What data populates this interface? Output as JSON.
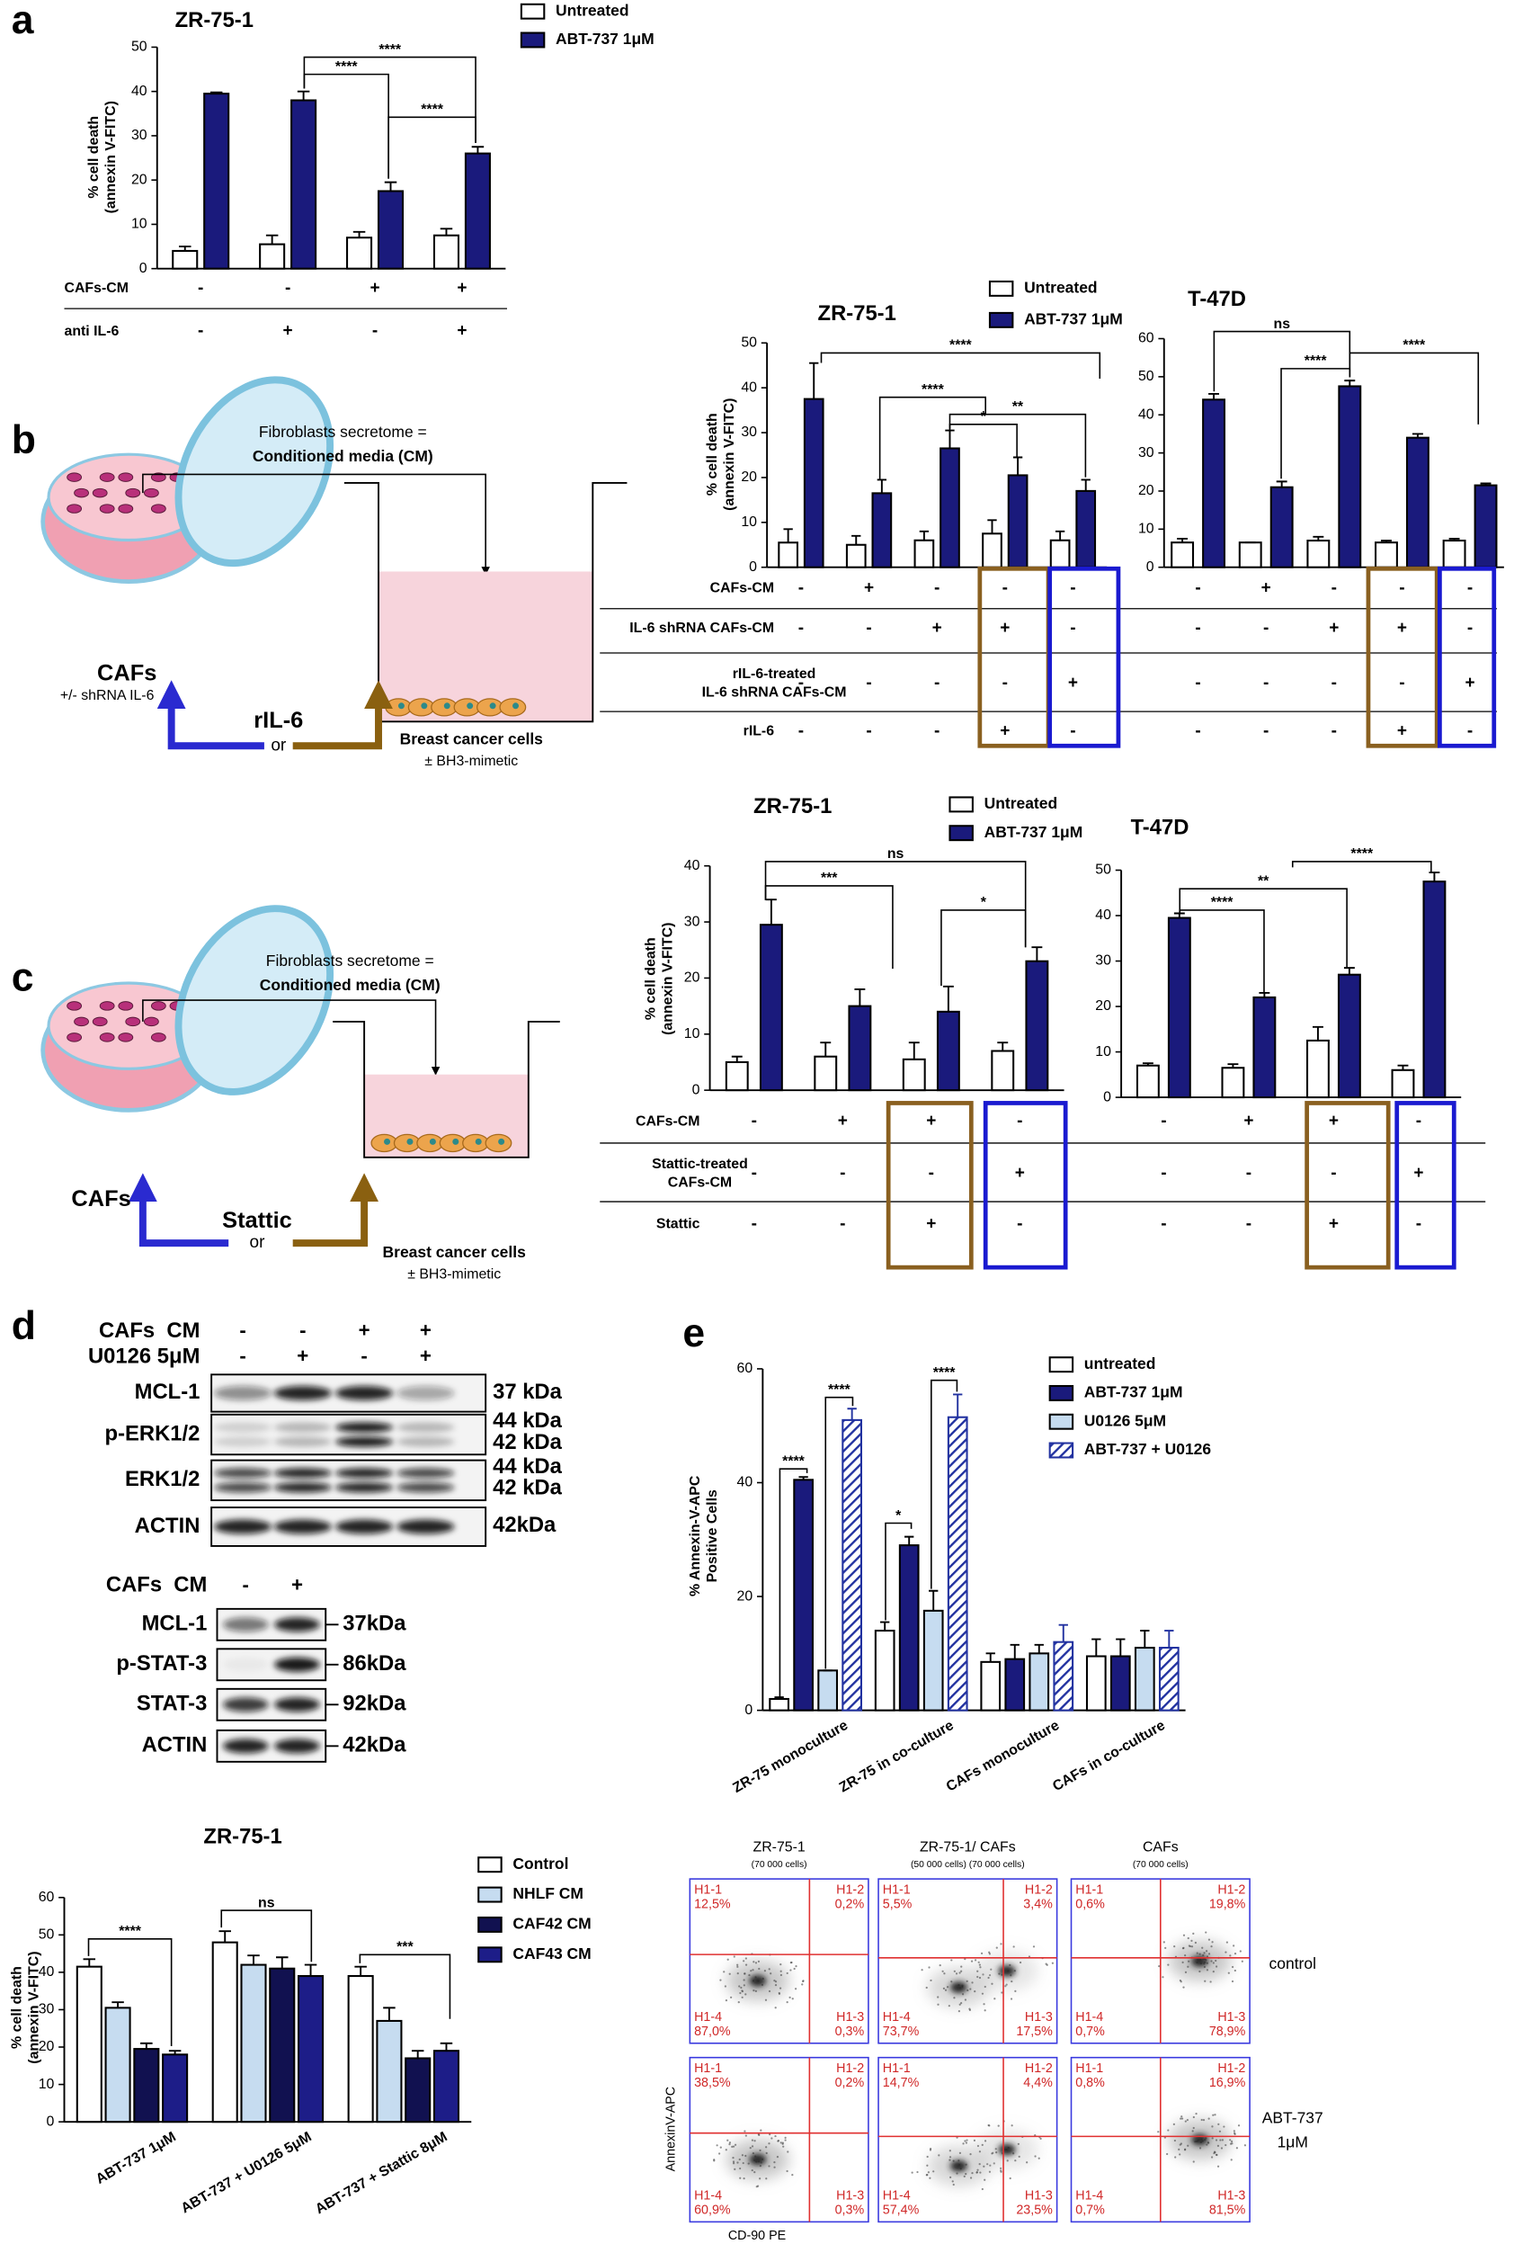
{
  "panel_labels": [
    "a",
    "b",
    "c",
    "d",
    "e"
  ],
  "chart_data": [
    {
      "type": "bar",
      "title": "ZR-75-1",
      "y_label": [
        "% cell death",
        "(annexin V-FITC)"
      ],
      "ylim": [
        0,
        50
      ],
      "yticks": [
        0,
        10,
        20,
        30,
        40,
        50
      ],
      "legend": true,
      "series": [
        {
          "name": "Untreated",
          "color": "#ffffff",
          "values": [
            4,
            5.5,
            7,
            7.5
          ],
          "errors": [
            1,
            2,
            1.3,
            1.5
          ]
        },
        {
          "name": "ABT-737 1μM",
          "color": "#1a1a7c",
          "values": [
            39.5,
            38,
            17.5,
            26
          ],
          "errors": [
            0.3,
            2,
            2,
            1.5
          ]
        }
      ],
      "conditions": [
        {
          "label": [
            "CAFs-CM"
          ],
          "values": [
            "-",
            "-",
            "+",
            "+"
          ]
        },
        {
          "label": [
            "anti IL-6"
          ],
          "values": [
            "-",
            "+",
            "-",
            "+"
          ]
        }
      ],
      "annotations": [
        "****",
        "****",
        "****"
      ]
    },
    {
      "type": "bar",
      "title": "ZR-75-1",
      "y_label": [
        "% cell death",
        "(annexin V-FITC)"
      ],
      "ylim": [
        0,
        50
      ],
      "yticks": [
        0,
        10,
        20,
        30,
        40,
        50
      ],
      "legend": true,
      "series": [
        {
          "name": "Untreated",
          "color": "#ffffff",
          "values": [
            5.5,
            5,
            6,
            7.5,
            6
          ],
          "errors": [
            3,
            2,
            2,
            3,
            2
          ]
        },
        {
          "name": "ABT-737 1μM",
          "color": "#1a1a7c",
          "values": [
            37.5,
            16.5,
            26.5,
            20.5,
            17
          ],
          "errors": [
            8,
            3,
            4,
            4,
            2.5
          ]
        }
      ],
      "conditions": [
        {
          "label": [
            "CAFs-CM"
          ],
          "values": [
            "-",
            "+",
            "-",
            "-",
            "-"
          ]
        },
        {
          "label": [
            "IL-6 shRNA CAFs-CM"
          ],
          "values": [
            "-",
            "-",
            "+",
            "+",
            "-"
          ]
        },
        {
          "label": [
            "rIL-6-treated",
            "IL-6 shRNA CAFs-CM"
          ],
          "values": [
            "-",
            "-",
            "-",
            "-",
            "+"
          ]
        },
        {
          "label": [
            "rIL-6"
          ],
          "values": [
            "-",
            "-",
            "-",
            "+",
            "-"
          ]
        }
      ],
      "annotations": [
        "****",
        "****",
        "*",
        "**"
      ]
    },
    {
      "type": "bar",
      "title": "T-47D",
      "ylim": [
        0,
        60
      ],
      "yticks": [
        0,
        10,
        20,
        30,
        40,
        50,
        60
      ],
      "series": [
        {
          "color": "#ffffff",
          "values": [
            6.5,
            6.5,
            7,
            6.5,
            7
          ],
          "errors": [
            1,
            0,
            1,
            0.5,
            0.5
          ]
        },
        {
          "color": "#1a1a7c",
          "values": [
            44,
            21,
            47.5,
            34,
            21.5
          ],
          "errors": [
            1.5,
            1.5,
            1.5,
            1,
            0.5
          ]
        }
      ],
      "conditions": [
        {
          "values": [
            "-",
            "+",
            "-",
            "-",
            "-"
          ]
        },
        {
          "values": [
            "-",
            "-",
            "+",
            "+",
            "-"
          ]
        },
        {
          "values": [
            "-",
            "-",
            "-",
            "-",
            "+"
          ]
        },
        {
          "values": [
            "-",
            "-",
            "-",
            "+",
            "-"
          ]
        }
      ],
      "annotations": [
        "ns",
        "****",
        "****"
      ]
    },
    {
      "type": "bar",
      "title": "ZR-75-1",
      "y_label": [
        "% cell death",
        "(annexin V-FITC)"
      ],
      "ylim": [
        0,
        40
      ],
      "yticks": [
        0,
        10,
        20,
        30,
        40
      ],
      "legend": true,
      "series": [
        {
          "name": "Untreated",
          "color": "#ffffff",
          "values": [
            5,
            6,
            5.5,
            7
          ],
          "errors": [
            1,
            2.5,
            3,
            1.5
          ]
        },
        {
          "name": "ABT-737 1μM",
          "color": "#1a1a7c",
          "values": [
            29.5,
            15,
            14,
            23
          ],
          "errors": [
            4.5,
            3,
            4.5,
            2.5
          ]
        }
      ],
      "conditions": [
        {
          "label": [
            "CAFs-CM"
          ],
          "values": [
            "-",
            "+",
            "+",
            "-"
          ]
        },
        {
          "label": [
            "Stattic-treated",
            "CAFs-CM"
          ],
          "values": [
            "-",
            "-",
            "-",
            "+"
          ]
        },
        {
          "label": [
            "Stattic"
          ],
          "values": [
            "-",
            "-",
            "+",
            "-"
          ]
        }
      ],
      "annotations": [
        "***",
        "ns",
        "*"
      ]
    },
    {
      "type": "bar",
      "title": "T-47D",
      "ylim": [
        0,
        50
      ],
      "yticks": [
        0,
        10,
        20,
        30,
        40,
        50
      ],
      "series": [
        {
          "color": "#ffffff",
          "values": [
            7,
            6.5,
            12.5,
            6
          ],
          "errors": [
            0.5,
            0.8,
            3,
            1
          ]
        },
        {
          "color": "#1a1a7c",
          "values": [
            39.5,
            22,
            27,
            47.5
          ],
          "errors": [
            1,
            1,
            1.5,
            2
          ]
        }
      ],
      "conditions": [
        {
          "values": [
            "-",
            "+",
            "+",
            "-"
          ]
        },
        {
          "values": [
            "-",
            "-",
            "-",
            "+"
          ]
        },
        {
          "values": [
            "-",
            "-",
            "+",
            "-"
          ]
        }
      ],
      "annotations": [
        "**",
        "****",
        "****"
      ]
    },
    {
      "type": "bar",
      "y_label": [
        "% Annexin-V-APC",
        "Positive Cells"
      ],
      "ylim": [
        0,
        60
      ],
      "yticks": [
        0,
        20,
        40,
        60
      ],
      "legend": true,
      "categories": [
        "ZR-75 monoculture",
        "ZR-75 in co-culture",
        "CAFs monoculture",
        "CAFs in co-culture"
      ],
      "series": [
        {
          "name": "untreated",
          "color": "#ffffff",
          "values": [
            2,
            14,
            8.5,
            9.5
          ],
          "errors": [
            0.3,
            1.5,
            1.5,
            3
          ]
        },
        {
          "name": "ABT-737 1μM",
          "color": "#1a1a7c",
          "values": [
            40.5,
            29,
            9,
            9.5
          ],
          "errors": [
            0.5,
            1.5,
            2.5,
            3
          ]
        },
        {
          "name": "U0126 5μM",
          "color": "#c6dcf0",
          "values": [
            7,
            17.5,
            10,
            11
          ],
          "errors": [
            0,
            3.5,
            1.5,
            3
          ]
        },
        {
          "name": "ABT-737 + U0126",
          "color": "#2232a0",
          "hatch": true,
          "values": [
            51,
            51.5,
            12,
            11
          ],
          "errors": [
            2,
            4,
            3,
            3
          ]
        }
      ],
      "annotations": [
        "****",
        "****",
        "*",
        "****"
      ]
    },
    {
      "type": "bar",
      "title": "ZR-75-1",
      "y_label": [
        "% cell death",
        "(annexin V-FITC)"
      ],
      "ylim": [
        0,
        60
      ],
      "yticks": [
        0,
        10,
        20,
        30,
        40,
        50,
        60
      ],
      "legend": true,
      "categories": [
        "ABT-737 1μM",
        "ABT-737 + U0126 5μM",
        "ABT-737 + Stattic 8μM"
      ],
      "series": [
        {
          "name": "Control",
          "color": "#ffffff",
          "values": [
            41.5,
            48,
            39
          ],
          "errors": [
            2,
            3,
            2.5
          ]
        },
        {
          "name": "NHLF CM",
          "color": "#c6dcf0",
          "values": [
            30.5,
            42,
            27
          ],
          "errors": [
            1.5,
            2.5,
            3.5
          ]
        },
        {
          "name": "CAF42 CM",
          "color": "#111150",
          "values": [
            19.5,
            41,
            17
          ],
          "errors": [
            1.5,
            3,
            2
          ]
        },
        {
          "name": "CAF43 CM",
          "color": "#1d1d88",
          "values": [
            18,
            39,
            19
          ],
          "errors": [
            1,
            3,
            2
          ]
        }
      ],
      "annotations": [
        "****",
        "ns",
        "***"
      ]
    }
  ],
  "schematics": [
    {
      "header": [
        "Fibroblasts secretome =",
        "Conditioned media (CM)"
      ],
      "cells": [
        "CAFs",
        "+/- shRNA IL-6"
      ],
      "treatment": "rIL-6",
      "or": "or",
      "target": [
        "Breast cancer cells",
        "± BH3-mimetic"
      ]
    },
    {
      "header": [
        "Fibroblasts secretome =",
        "Conditioned media (CM)"
      ],
      "cells": [
        "CAFs"
      ],
      "treatment": "Stattic",
      "or": "or",
      "target": [
        "Breast cancer cells",
        "± BH3-mimetic"
      ]
    }
  ],
  "blots": [
    {
      "conditions": [
        {
          "label": "CAFs  CM",
          "values": [
            "-",
            "-",
            "+",
            "+"
          ]
        },
        {
          "label": "U0126 5μM",
          "values": [
            "-",
            "+",
            "-",
            "+"
          ]
        }
      ],
      "rows": [
        {
          "name": "MCL-1",
          "sizes": [
            "37 kDa"
          ]
        },
        {
          "name": "p-ERK1/2",
          "sizes": [
            "44 kDa",
            "42 kDa"
          ]
        },
        {
          "name": "ERK1/2",
          "sizes": [
            "44 kDa",
            "42 kDa"
          ]
        },
        {
          "name": "ACTIN",
          "sizes": [
            "42kDa"
          ]
        }
      ]
    },
    {
      "conditions": [
        {
          "label": "CAFs  CM",
          "values": [
            "-",
            "+"
          ]
        }
      ],
      "rows": [
        {
          "name": "MCL-1",
          "sizes": [
            "37kDa"
          ]
        },
        {
          "name": "p-STAT-3",
          "sizes": [
            "86kDa"
          ]
        },
        {
          "name": "STAT-3",
          "sizes": [
            "92kDa"
          ]
        },
        {
          "name": "ACTIN",
          "sizes": [
            "42kDa"
          ]
        }
      ]
    }
  ],
  "flow": {
    "columns": [
      {
        "title": "ZR-75-1",
        "cells": "(70 000 cells)"
      },
      {
        "title": "ZR-75-1/ CAFs",
        "cells": "(50 000 cells) (70 000 cells)"
      },
      {
        "title": "CAFs",
        "cells": "(70 000 cells)"
      }
    ],
    "row_labels": [
      [
        "control"
      ],
      [
        "ABT-737",
        "1μM"
      ]
    ],
    "y_axis": "AnnexinV-APC",
    "x_axis": "CD-90 PE",
    "plots": [
      [
        [
          {
            "gate": "H1-1",
            "value": "12,5%"
          },
          {
            "gate": "H1-2",
            "value": "0,2%"
          },
          {
            "gate": "H1-4",
            "value": "87,0%"
          },
          {
            "gate": "H1-3",
            "value": "0,3%"
          }
        ],
        [
          {
            "gate": "H1-1",
            "value": "5,5%"
          },
          {
            "gate": "H1-2",
            "value": "3,4%"
          },
          {
            "gate": "H1-4",
            "value": "73,7%"
          },
          {
            "gate": "H1-3",
            "value": "17,5%"
          }
        ],
        [
          {
            "gate": "H1-1",
            "value": "0,6%"
          },
          {
            "gate": "H1-2",
            "value": "19,8%"
          },
          {
            "gate": "H1-4",
            "value": "0,7%"
          },
          {
            "gate": "H1-3",
            "value": "78,9%"
          }
        ]
      ],
      [
        [
          {
            "gate": "H1-1",
            "value": "38,5%"
          },
          {
            "gate": "H1-2",
            "value": "0,2%"
          },
          {
            "gate": "H1-4",
            "value": "60,9%"
          },
          {
            "gate": "H1-3",
            "value": "0,3%"
          }
        ],
        [
          {
            "gate": "H1-1",
            "value": "14,7%"
          },
          {
            "gate": "H1-2",
            "value": "4,4%"
          },
          {
            "gate": "H1-4",
            "value": "57,4%"
          },
          {
            "gate": "H1-3",
            "value": "23,5%"
          }
        ],
        [
          {
            "gate": "H1-1",
            "value": "0,8%"
          },
          {
            "gate": "H1-2",
            "value": "16,9%"
          },
          {
            "gate": "H1-4",
            "value": "0,7%"
          },
          {
            "gate": "H1-3",
            "value": "81,5%"
          }
        ]
      ]
    ]
  }
}
